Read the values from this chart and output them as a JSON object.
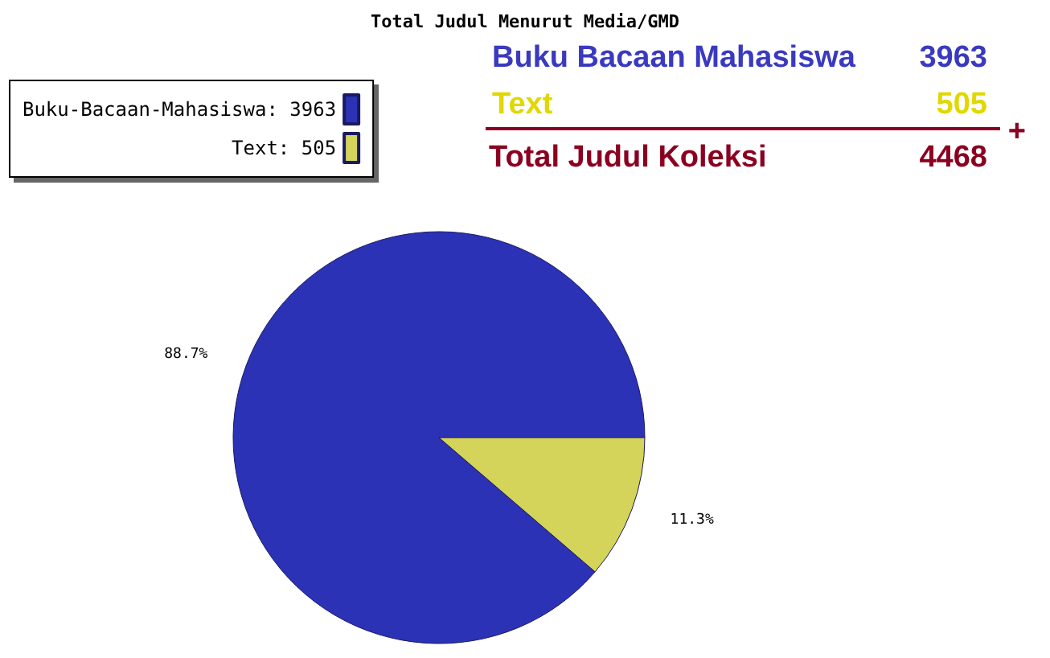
{
  "chart_data": {
    "type": "pie",
    "title": "Total Judul Menurut Media/GMD",
    "categories": [
      "Buku-Bacaan-Mahasiswa: 3963",
      "Text: 505"
    ],
    "values": [
      88.7,
      11.3
    ],
    "colors": [
      "#2c32b5",
      "#d4d35a"
    ],
    "value_labels": [
      "88.7%",
      "11.3%"
    ],
    "legend": "top left",
    "annotations": [
      "Buku Bacaan Mahasiswa",
      "3963",
      "Text",
      "505",
      "+",
      "Total Judul Koleksi",
      "4468"
    ]
  }
}
